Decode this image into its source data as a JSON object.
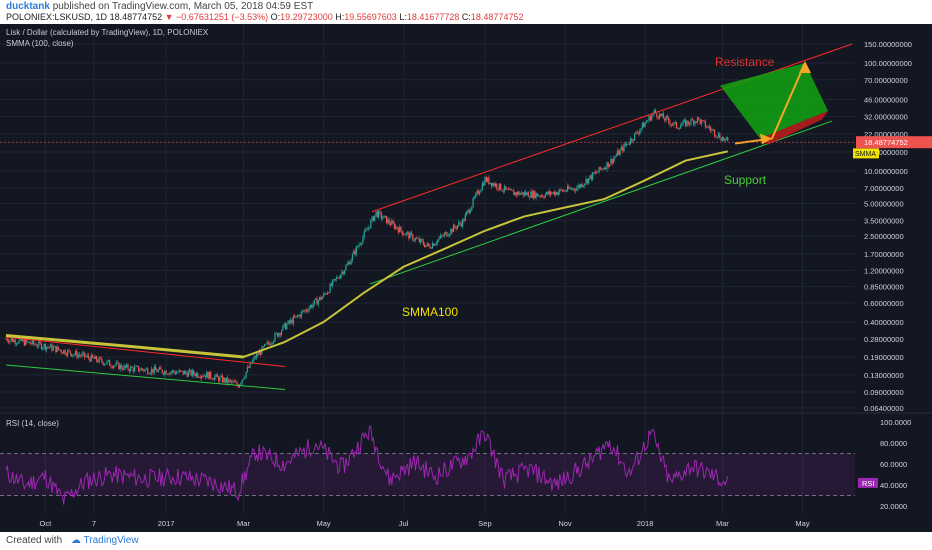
{
  "header": {
    "user": "ducktank",
    "published": "published on TradingView.com, March 05, 2018 04:59 EST",
    "symbol": "POLONIEX:LSKUSD, 1D",
    "last": "18.48774752",
    "change": "▼ −0.67631251 (−3.53%)",
    "o_label": "O:",
    "o": "19.29723000",
    "h_label": "H:",
    "h": "19.55697603",
    "l_label": "L:",
    "l": "18.41677728",
    "c_label": "C:",
    "c": "18.48774752"
  },
  "chart_data": {
    "type": "candlestick",
    "title": "Lisk / Dollar (calculated by TradingView), 1D, POLONIEX",
    "indicator": "SMMA (100, close)",
    "y_scale": "log",
    "y_ticks": [
      "150.00000000",
      "100.00000000",
      "70.00000000",
      "46.00000000",
      "32.00000000",
      "22.00000000",
      "15.00000000",
      "10.00000000",
      "7.00000000",
      "5.00000000",
      "3.50000000",
      "2.50000000",
      "1.70000000",
      "1.20000000",
      "0.85000000",
      "0.60000000",
      "0.40000000",
      "0.28000000",
      "0.19000000",
      "0.13000000",
      "0.09000000",
      "0.06400000"
    ],
    "y_tick_values": [
      150,
      100,
      70,
      46,
      32,
      22,
      15,
      10,
      7,
      5,
      3.5,
      2.5,
      1.7,
      1.2,
      0.85,
      0.6,
      0.4,
      0.28,
      0.19,
      0.13,
      0.09,
      0.064
    ],
    "x_ticks": [
      "Oct",
      "7",
      "2017",
      "Mar",
      "May",
      "Jul",
      "Sep",
      "Nov",
      "2018",
      "Mar",
      "May"
    ],
    "x_tick_dates": [
      "2016-10-01",
      "2016-11-07",
      "2017-01-01",
      "2017-03-01",
      "2017-05-01",
      "2017-07-01",
      "2017-09-01",
      "2017-11-01",
      "2018-01-01",
      "2018-03-01",
      "2018-05-01"
    ],
    "last_price_label": "18.48774752",
    "last_price": 18.48774752,
    "smma_label": "SMMA",
    "smma_last": 15.2,
    "price_series": [
      {
        "date": "2016-09-01",
        "close": 0.28
      },
      {
        "date": "2016-10-01",
        "close": 0.24
      },
      {
        "date": "2016-11-01",
        "close": 0.19
      },
      {
        "date": "2016-12-01",
        "close": 0.15
      },
      {
        "date": "2017-01-01",
        "close": 0.14
      },
      {
        "date": "2017-02-01",
        "close": 0.13
      },
      {
        "date": "2017-02-25",
        "close": 0.105
      },
      {
        "date": "2017-03-10",
        "close": 0.19
      },
      {
        "date": "2017-04-01",
        "close": 0.36
      },
      {
        "date": "2017-05-01",
        "close": 0.7
      },
      {
        "date": "2017-05-20",
        "close": 1.4
      },
      {
        "date": "2017-06-10",
        "close": 4.1
      },
      {
        "date": "2017-07-01",
        "close": 2.7
      },
      {
        "date": "2017-07-20",
        "close": 2.0
      },
      {
        "date": "2017-08-15",
        "close": 3.4
      },
      {
        "date": "2017-09-01",
        "close": 8.4
      },
      {
        "date": "2017-09-20",
        "close": 6.3
      },
      {
        "date": "2017-10-15",
        "close": 6.0
      },
      {
        "date": "2017-11-10",
        "close": 7.0
      },
      {
        "date": "2017-12-05",
        "close": 12.0
      },
      {
        "date": "2017-12-25",
        "close": 22.0
      },
      {
        "date": "2018-01-08",
        "close": 35.0
      },
      {
        "date": "2018-01-25",
        "close": 26.0
      },
      {
        "date": "2018-02-10",
        "close": 30.0
      },
      {
        "date": "2018-03-05",
        "close": 18.49
      }
    ],
    "smma_series": [
      {
        "date": "2016-09-01",
        "value": 0.3
      },
      {
        "date": "2016-12-01",
        "value": 0.24
      },
      {
        "date": "2017-03-01",
        "value": 0.19
      },
      {
        "date": "2017-04-01",
        "value": 0.26
      },
      {
        "date": "2017-05-01",
        "value": 0.4
      },
      {
        "date": "2017-06-01",
        "value": 0.75
      },
      {
        "date": "2017-07-01",
        "value": 1.3
      },
      {
        "date": "2017-08-01",
        "value": 1.9
      },
      {
        "date": "2017-09-01",
        "value": 2.8
      },
      {
        "date": "2017-10-01",
        "value": 3.8
      },
      {
        "date": "2017-11-01",
        "value": 4.6
      },
      {
        "date": "2017-12-01",
        "value": 5.5
      },
      {
        "date": "2018-01-01",
        "value": 8.2
      },
      {
        "date": "2018-02-01",
        "value": 12.5
      },
      {
        "date": "2018-03-05",
        "value": 15.2
      }
    ],
    "annotations": [
      {
        "text": "Resistance",
        "color": "#e03030"
      },
      {
        "text": "Support",
        "color": "#4cd137"
      },
      {
        "text": "SMMA100",
        "color": "#f2e000"
      }
    ],
    "rsi": {
      "title": "RSI (14, close)",
      "y_ticks": [
        "100.0000",
        "80.0000",
        "60.0000",
        "40.0000",
        "20.0000"
      ],
      "y_tick_values": [
        100,
        80,
        60,
        40,
        20
      ],
      "bands": [
        70,
        30
      ],
      "label": "RSI",
      "series": [
        {
          "date": "2016-09-01",
          "value": 52
        },
        {
          "date": "2016-09-15",
          "value": 40
        },
        {
          "date": "2016-10-01",
          "value": 48
        },
        {
          "date": "2016-10-15",
          "value": 25
        },
        {
          "date": "2016-11-01",
          "value": 44
        },
        {
          "date": "2016-11-20",
          "value": 50
        },
        {
          "date": "2016-12-15",
          "value": 46
        },
        {
          "date": "2017-01-10",
          "value": 48
        },
        {
          "date": "2017-02-01",
          "value": 44
        },
        {
          "date": "2017-02-25",
          "value": 34
        },
        {
          "date": "2017-03-10",
          "value": 72
        },
        {
          "date": "2017-04-01",
          "value": 60
        },
        {
          "date": "2017-04-25",
          "value": 80
        },
        {
          "date": "2017-05-15",
          "value": 56
        },
        {
          "date": "2017-06-05",
          "value": 92
        },
        {
          "date": "2017-06-20",
          "value": 45
        },
        {
          "date": "2017-07-10",
          "value": 62
        },
        {
          "date": "2017-07-25",
          "value": 48
        },
        {
          "date": "2017-08-20",
          "value": 68
        },
        {
          "date": "2017-09-01",
          "value": 90
        },
        {
          "date": "2017-09-15",
          "value": 45
        },
        {
          "date": "2017-10-05",
          "value": 55
        },
        {
          "date": "2017-10-25",
          "value": 40
        },
        {
          "date": "2017-11-20",
          "value": 62
        },
        {
          "date": "2017-12-05",
          "value": 82
        },
        {
          "date": "2017-12-20",
          "value": 50
        },
        {
          "date": "2018-01-06",
          "value": 90
        },
        {
          "date": "2018-01-20",
          "value": 42
        },
        {
          "date": "2018-02-05",
          "value": 58
        },
        {
          "date": "2018-02-20",
          "value": 50
        },
        {
          "date": "2018-03-05",
          "value": 42
        }
      ]
    }
  },
  "colors": {
    "background": "#131722",
    "up": "#26a69a",
    "down": "#ef5350",
    "smma": "#c8c43a",
    "resistance": "#ff2a2a",
    "support": "#2ecc40",
    "rsi": "#9c27b0",
    "rsi_band": "rgba(156,39,176,0.14)",
    "target_box": "#12a312",
    "projection": "#f5a623"
  },
  "footer": {
    "created": "Created with",
    "brand": "TradingView"
  }
}
